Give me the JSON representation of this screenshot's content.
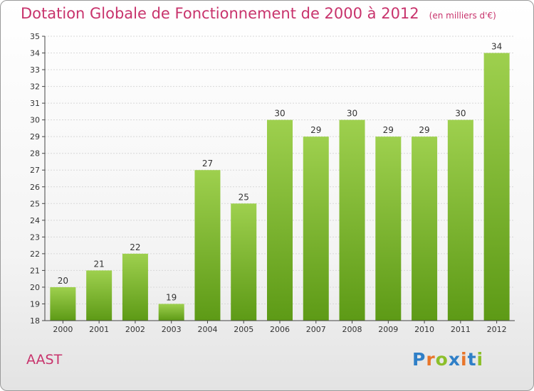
{
  "title": "Dotation Globale de Fonctionnement de 2000 à 2012",
  "subtitle": "(en milliers d'€)",
  "place": "AAST",
  "logo": "Proxiti",
  "colors": {
    "title": "#c8336c",
    "bar_top": "#9ed04e",
    "bar_bottom": "#5d9a16",
    "grid": "#d8d8d8",
    "axis": "#444444"
  },
  "chart_data": {
    "type": "bar",
    "title": "Dotation Globale de Fonctionnement de 2000 à 2012",
    "subtitle": "(en milliers d'€)",
    "xlabel": "",
    "ylabel": "",
    "ylim": [
      18,
      35
    ],
    "yticks": [
      18,
      19,
      20,
      21,
      22,
      23,
      24,
      25,
      26,
      27,
      28,
      29,
      30,
      31,
      32,
      33,
      34,
      35
    ],
    "grid": true,
    "categories": [
      "2000",
      "2001",
      "2002",
      "2003",
      "2004",
      "2005",
      "2006",
      "2007",
      "2008",
      "2009",
      "2010",
      "2011",
      "2012"
    ],
    "values": [
      20,
      21,
      22,
      19,
      27,
      25,
      30,
      29,
      30,
      29,
      29,
      30,
      34
    ]
  }
}
